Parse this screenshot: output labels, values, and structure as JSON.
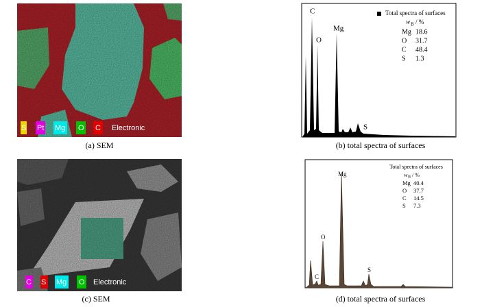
{
  "panels": [
    {
      "caption": "(a) SEM",
      "legend": [
        "S",
        "Pt",
        "Mg",
        "O",
        "C",
        "Electronic"
      ]
    },
    {
      "caption": "(b) total spectra of surfaces",
      "peak_labels": [
        "C",
        "O",
        "Mg",
        "S"
      ],
      "legend_title": "Total spectra of surfaces",
      "unit": {
        "symbol": "w",
        "subscript": "B",
        "suffix": "/ %"
      },
      "composition": [
        {
          "element": "Mg",
          "value": 18.6
        },
        {
          "element": "O",
          "value": 31.7
        },
        {
          "element": "C",
          "value": 48.4
        },
        {
          "element": "S",
          "value": 1.3
        }
      ]
    },
    {
      "caption": "(c) SEM",
      "legend": [
        "C",
        "S",
        "Mg",
        "O",
        "Electronic"
      ]
    },
    {
      "caption": "(d) total spectra of surfaces",
      "peak_labels": [
        "Mg",
        "O",
        "C",
        "S"
      ],
      "legend_title": "Total spectra of surfaces",
      "unit": {
        "symbol": "w",
        "subscript": "B",
        "suffix": "/ %"
      },
      "composition": [
        {
          "element": "Mg",
          "value": 40.4
        },
        {
          "element": "O",
          "value": 37.7
        },
        {
          "element": "C",
          "value": 14.5
        },
        {
          "element": "S",
          "value": 7.3
        }
      ]
    }
  ]
}
